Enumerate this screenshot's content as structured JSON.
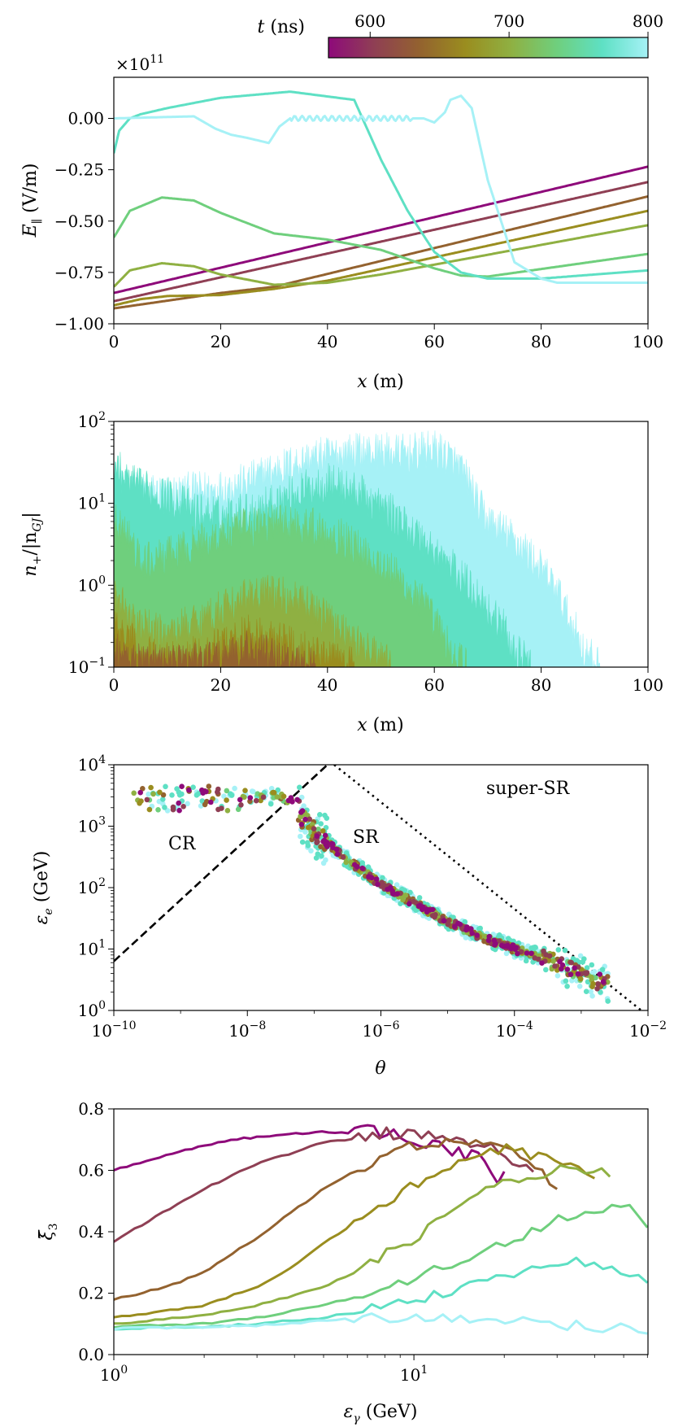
{
  "colorbar": {
    "label": "t (ns)",
    "label_var": "t",
    "label_unit": " (ns)",
    "ticks": [
      600,
      700,
      800
    ],
    "range": [
      570,
      800
    ],
    "colormap": [
      "#8e0a7a",
      "#8f3f54",
      "#93622f",
      "#9a8d1f",
      "#8fb042",
      "#6fcf7d",
      "#5ee0c4",
      "#a6f1f6"
    ]
  },
  "chart_data": [
    {
      "id": "panel1",
      "type": "line",
      "ylabel": "E_∥ (V/m)",
      "ylabel_main": "E",
      "ylabel_sub": "∥",
      "ylabel_unit": " (V/m)",
      "xlabel": "x (m)",
      "xlabel_var": "x",
      "xlabel_unit": " (m)",
      "exponent_label": "×10",
      "exponent_power": "11",
      "xlim": [
        0,
        100
      ],
      "ylim": [
        -1.0,
        0.2
      ],
      "xticks": [
        "0",
        "20",
        "40",
        "60",
        "80",
        "100"
      ],
      "yticks": [
        "−1.00",
        "−0.75",
        "−0.50",
        "−0.25",
        "0.00"
      ],
      "series": [
        {
          "name": "t1",
          "color": "#8e0a7a",
          "x": [
            0,
            100
          ],
          "y": [
            -0.85,
            -0.235
          ]
        },
        {
          "name": "t2",
          "color": "#8f3f54",
          "x": [
            0,
            100
          ],
          "y": [
            -0.89,
            -0.31
          ]
        },
        {
          "name": "t3",
          "color": "#93622f",
          "x": [
            0,
            20,
            30,
            100
          ],
          "y": [
            -0.925,
            -0.85,
            -0.82,
            -0.38
          ]
        },
        {
          "name": "t4",
          "color": "#9a8d1f",
          "x": [
            0,
            5,
            10,
            20,
            30,
            40,
            100
          ],
          "y": [
            -0.91,
            -0.88,
            -0.865,
            -0.86,
            -0.83,
            -0.79,
            -0.45
          ]
        },
        {
          "name": "t5",
          "color": "#8fb042",
          "x": [
            0,
            3,
            9,
            15,
            20,
            30,
            40,
            50,
            100
          ],
          "y": [
            -0.82,
            -0.74,
            -0.705,
            -0.72,
            -0.76,
            -0.81,
            -0.8,
            -0.76,
            -0.52
          ]
        },
        {
          "name": "t6",
          "color": "#6fcf7d",
          "x": [
            0,
            3,
            9,
            15,
            20,
            30,
            40,
            50,
            60,
            65,
            70,
            100
          ],
          "y": [
            -0.58,
            -0.45,
            -0.385,
            -0.4,
            -0.46,
            -0.56,
            -0.59,
            -0.64,
            -0.73,
            -0.765,
            -0.77,
            -0.66
          ]
        },
        {
          "name": "t7",
          "color": "#5ee0c4",
          "x": [
            0,
            1,
            3,
            5,
            10,
            20,
            33,
            45,
            50,
            55,
            60,
            65,
            70,
            80,
            100
          ],
          "y": [
            -0.17,
            -0.06,
            0.0,
            0.02,
            0.05,
            0.1,
            0.13,
            0.09,
            -0.2,
            -0.45,
            -0.65,
            -0.75,
            -0.78,
            -0.78,
            -0.74
          ]
        },
        {
          "name": "t8",
          "color": "#a6f1f6",
          "x": [
            0,
            15,
            19,
            22,
            25,
            29,
            31,
            33,
            37,
            42,
            48,
            53,
            58,
            60,
            62,
            63,
            65,
            67,
            70,
            75,
            80,
            83,
            100
          ],
          "y": [
            0.0,
            0.01,
            -0.05,
            -0.08,
            -0.095,
            -0.12,
            -0.04,
            0.0,
            0.0,
            0.0,
            0.0,
            0.0,
            0.0,
            -0.02,
            0.03,
            0.09,
            0.11,
            0.05,
            -0.3,
            -0.7,
            -0.78,
            -0.8,
            -0.8
          ]
        }
      ]
    },
    {
      "id": "panel2",
      "type": "area",
      "ylabel": "n_+/|n_GJ|",
      "ylabel_main": "n",
      "ylabel_sub": "+",
      "ylabel_mid": "/|n",
      "ylabel_sub2": "GJ",
      "ylabel_end": "|",
      "xlabel": "x (m)",
      "xlabel_var": "x",
      "xlabel_unit": " (m)",
      "xlim": [
        0,
        100
      ],
      "ylim": [
        0.1,
        100
      ],
      "xticks": [
        "0",
        "20",
        "40",
        "60",
        "80",
        "100"
      ],
      "ytick_mantissa": "10",
      "ytick_powers": [
        "−1",
        "0",
        "1",
        "2"
      ],
      "series": [
        {
          "name": "t8",
          "color": "#a6f1f6",
          "x": [
            0,
            5,
            10,
            15,
            20,
            25,
            30,
            35,
            40,
            45,
            50,
            55,
            60,
            62,
            65,
            68,
            70,
            75,
            80,
            85,
            88,
            91
          ],
          "y": [
            15,
            14,
            13,
            14,
            15,
            18,
            25,
            32,
            38,
            42,
            42,
            40,
            45,
            40,
            25,
            10,
            6,
            3.5,
            1.5,
            0.4,
            0.15,
            0.1
          ]
        },
        {
          "name": "t7",
          "color": "#5ee0c4",
          "x": [
            0,
            2,
            5,
            10,
            15,
            20,
            25,
            30,
            35,
            40,
            45,
            50,
            55,
            60,
            65,
            70,
            75,
            78
          ],
          "y": [
            30,
            20,
            15,
            12,
            8,
            7,
            8,
            10,
            14,
            18,
            14,
            9,
            5,
            2.5,
            1.2,
            0.5,
            0.15,
            0.1
          ]
        },
        {
          "name": "t6",
          "color": "#6fcf7d",
          "x": [
            0,
            5,
            10,
            15,
            20,
            25,
            30,
            35,
            40,
            45,
            50,
            55,
            60,
            63,
            66
          ],
          "y": [
            6,
            1.8,
            2.2,
            3,
            4,
            5,
            5.8,
            5.5,
            4.5,
            3,
            1.8,
            0.9,
            0.35,
            0.15,
            0.1
          ]
        },
        {
          "name": "t5",
          "color": "#8fb042",
          "x": [
            0,
            5,
            10,
            15,
            20,
            25,
            30,
            35,
            40,
            45,
            50,
            52
          ],
          "y": [
            0.7,
            0.3,
            0.25,
            0.35,
            0.5,
            0.7,
            0.8,
            0.6,
            0.4,
            0.2,
            0.12,
            0.1
          ]
        },
        {
          "name": "t4",
          "color": "#9a8d1f",
          "x": [
            0,
            5,
            10,
            15,
            20,
            25,
            30,
            35,
            40,
            45
          ],
          "y": [
            0.3,
            0.15,
            0.12,
            0.14,
            0.18,
            0.25,
            0.22,
            0.17,
            0.12,
            0.1
          ]
        },
        {
          "name": "t3",
          "color": "#93622f",
          "x": [
            0,
            5,
            10,
            15,
            20,
            25,
            30,
            35,
            38
          ],
          "y": [
            0.15,
            0.12,
            0.11,
            0.12,
            0.13,
            0.16,
            0.14,
            0.11,
            0.1
          ]
        }
      ]
    },
    {
      "id": "panel3",
      "type": "scatter",
      "ylabel": "ε_e (GeV)",
      "ylabel_main": "ε",
      "ylabel_sub": "e",
      "ylabel_unit": " (GeV)",
      "xlabel": "θ",
      "xlim_log10": [
        -10,
        -2
      ],
      "ylim_log10": [
        0,
        4
      ],
      "xtick_mantissa": "10",
      "xtick_powers": [
        "−10",
        "−8",
        "−6",
        "−4",
        "−2"
      ],
      "ytick_mantissa": "10",
      "ytick_powers": [
        "0",
        "1",
        "2",
        "3",
        "4"
      ],
      "annotations": [
        "CR",
        "SR",
        "super-SR"
      ],
      "lines": [
        {
          "name": "CR-SR boundary",
          "style": "dashed",
          "x_log10": [
            -10,
            -6.8
          ],
          "y_log10": [
            0.8,
            4.0
          ]
        },
        {
          "name": "SR-superSR boundary",
          "style": "dotted",
          "x_log10": [
            -6.7,
            -2.1
          ],
          "y_log10": [
            4.0,
            0.0
          ]
        }
      ],
      "trend": {
        "x_log10": [
          -9.7,
          -8.0,
          -7.6,
          -7.3,
          -7.1,
          -6.5,
          -6.0,
          -5.5,
          -5.0,
          -4.5,
          -4.0,
          -3.5,
          -3.0,
          -2.7
        ],
        "y_log10": [
          3.45,
          3.45,
          3.5,
          3.4,
          3.0,
          2.45,
          2.05,
          1.75,
          1.45,
          1.2,
          1.0,
          0.82,
          0.6,
          0.45
        ]
      }
    },
    {
      "id": "panel4",
      "type": "line",
      "ylabel": "ξ̄_3",
      "ylabel_main": "ξ̄",
      "ylabel_sub": "3",
      "xlabel": "ε_γ (GeV)",
      "xlabel_main": "ε",
      "xlabel_sub": "γ",
      "xlabel_unit": " (GeV)",
      "xlim_log10": [
        0,
        1.78
      ],
      "ylim": [
        0,
        0.8
      ],
      "xtick_mantissa": "10",
      "xtick_powers": [
        "0",
        "1"
      ],
      "yticks": [
        "0.0",
        "0.2",
        "0.4",
        "0.6",
        "0.8"
      ],
      "series": [
        {
          "name": "t1",
          "color": "#8e0a7a",
          "x": [
            1,
            1.3,
            1.8,
            2.5,
            3.5,
            5,
            7,
            10,
            13,
            16,
            18,
            19,
            20
          ],
          "y": [
            0.6,
            0.63,
            0.67,
            0.7,
            0.715,
            0.725,
            0.72,
            0.71,
            0.68,
            0.64,
            0.62,
            0.57,
            0.58
          ]
        },
        {
          "name": "t2",
          "color": "#8f3f54",
          "x": [
            1,
            1.5,
            2,
            3,
            4,
            5,
            7,
            10,
            15,
            20,
            25
          ],
          "y": [
            0.37,
            0.47,
            0.54,
            0.62,
            0.66,
            0.69,
            0.71,
            0.72,
            0.7,
            0.66,
            0.6
          ]
        },
        {
          "name": "t3",
          "color": "#93622f",
          "x": [
            1,
            1.5,
            2,
            3,
            4,
            5,
            7,
            10,
            15,
            20,
            30
          ],
          "y": [
            0.18,
            0.22,
            0.27,
            0.38,
            0.47,
            0.54,
            0.62,
            0.68,
            0.7,
            0.68,
            0.55
          ]
        },
        {
          "name": "t4",
          "color": "#9a8d1f",
          "x": [
            1,
            2,
            3,
            4,
            5,
            7,
            10,
            15,
            20,
            30,
            40
          ],
          "y": [
            0.12,
            0.16,
            0.22,
            0.29,
            0.36,
            0.46,
            0.55,
            0.63,
            0.67,
            0.63,
            0.58
          ]
        },
        {
          "name": "t5",
          "color": "#8fb042",
          "x": [
            1,
            2,
            3,
            5,
            7,
            10,
            15,
            20,
            30,
            40,
            45
          ],
          "y": [
            0.1,
            0.13,
            0.16,
            0.22,
            0.29,
            0.38,
            0.5,
            0.56,
            0.6,
            0.6,
            0.58
          ]
        },
        {
          "name": "t6",
          "color": "#6fcf7d",
          "x": [
            1,
            2,
            3,
            5,
            7,
            10,
            15,
            20,
            30,
            40,
            50,
            60
          ],
          "y": [
            0.09,
            0.1,
            0.12,
            0.16,
            0.2,
            0.25,
            0.31,
            0.36,
            0.44,
            0.47,
            0.5,
            0.43
          ]
        },
        {
          "name": "t7",
          "color": "#5ee0c4",
          "x": [
            1,
            2,
            3,
            5,
            7,
            10,
            15,
            20,
            30,
            40,
            50,
            60
          ],
          "y": [
            0.085,
            0.09,
            0.1,
            0.12,
            0.15,
            0.18,
            0.22,
            0.26,
            0.3,
            0.3,
            0.27,
            0.24
          ]
        },
        {
          "name": "t8",
          "color": "#a6f1f6",
          "x": [
            1,
            2,
            3,
            5,
            7,
            10,
            15,
            20,
            30,
            40,
            60
          ],
          "y": [
            0.085,
            0.09,
            0.095,
            0.11,
            0.12,
            0.125,
            0.12,
            0.11,
            0.1,
            0.09,
            0.085
          ]
        }
      ]
    }
  ]
}
